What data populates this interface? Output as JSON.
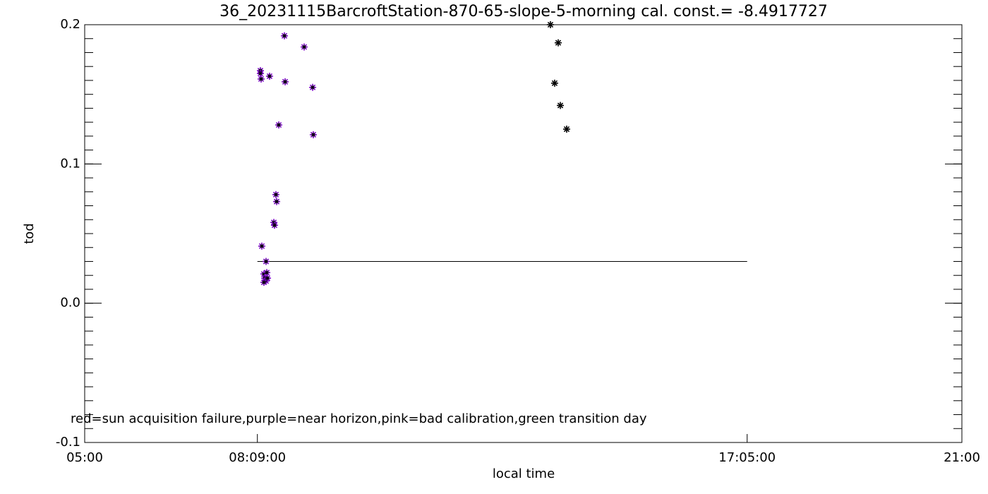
{
  "chart_data": {
    "type": "scatter",
    "title": "36_20231115BarcroftStation-870-65-slope-5-morning cal. const.= -8.4917727",
    "x_label": "local time",
    "y_label": "tod",
    "annotation": "red=sun acquisition failure,purple=near horizon,pink=bad calibration,green transition day",
    "xlim": [
      5,
      21
    ],
    "xticks": [
      {
        "value": 5,
        "label": "05:00"
      },
      {
        "value": 8.15,
        "label": "08:09:00"
      },
      {
        "value": 17.0833,
        "label": "17:05:00"
      },
      {
        "value": 21,
        "label": "21:00"
      }
    ],
    "ylim": [
      -0.1,
      0.2
    ],
    "yticks": [
      {
        "value": -0.1,
        "label": "-0.1"
      },
      {
        "value": 0,
        "label": "0.0"
      },
      {
        "value": 0.1,
        "label": "0.1"
      },
      {
        "value": 0.2,
        "label": "0.2"
      }
    ],
    "y_minor_step": 0.01,
    "series": [
      {
        "color": "#7a00c8",
        "x": [
          8.205,
          8.205,
          8.218,
          8.372,
          8.643,
          9.003,
          8.656,
          9.158,
          8.54,
          9.17,
          8.488,
          8.501,
          8.45,
          8.462,
          8.231,
          8.308,
          8.269,
          8.321,
          8.282,
          8.308,
          8.269,
          8.334
        ],
        "values": [
          0.167,
          0.165,
          0.161,
          0.163,
          0.192,
          0.184,
          0.159,
          0.155,
          0.128,
          0.121,
          0.078,
          0.073,
          0.058,
          0.056,
          0.041,
          0.03,
          0.021,
          0.022,
          0.018,
          0.016,
          0.015,
          0.018
        ]
      },
      {
        "color": "#000000",
        "x": [
          13.495,
          13.637,
          13.572,
          13.676,
          13.791
        ],
        "values": [
          0.2,
          0.187,
          0.158,
          0.142,
          0.125
        ]
      }
    ],
    "reference_line": {
      "x": [
        8.15,
        17.0833
      ],
      "values": [
        0.03,
        0.03
      ],
      "color": "#000000"
    }
  }
}
